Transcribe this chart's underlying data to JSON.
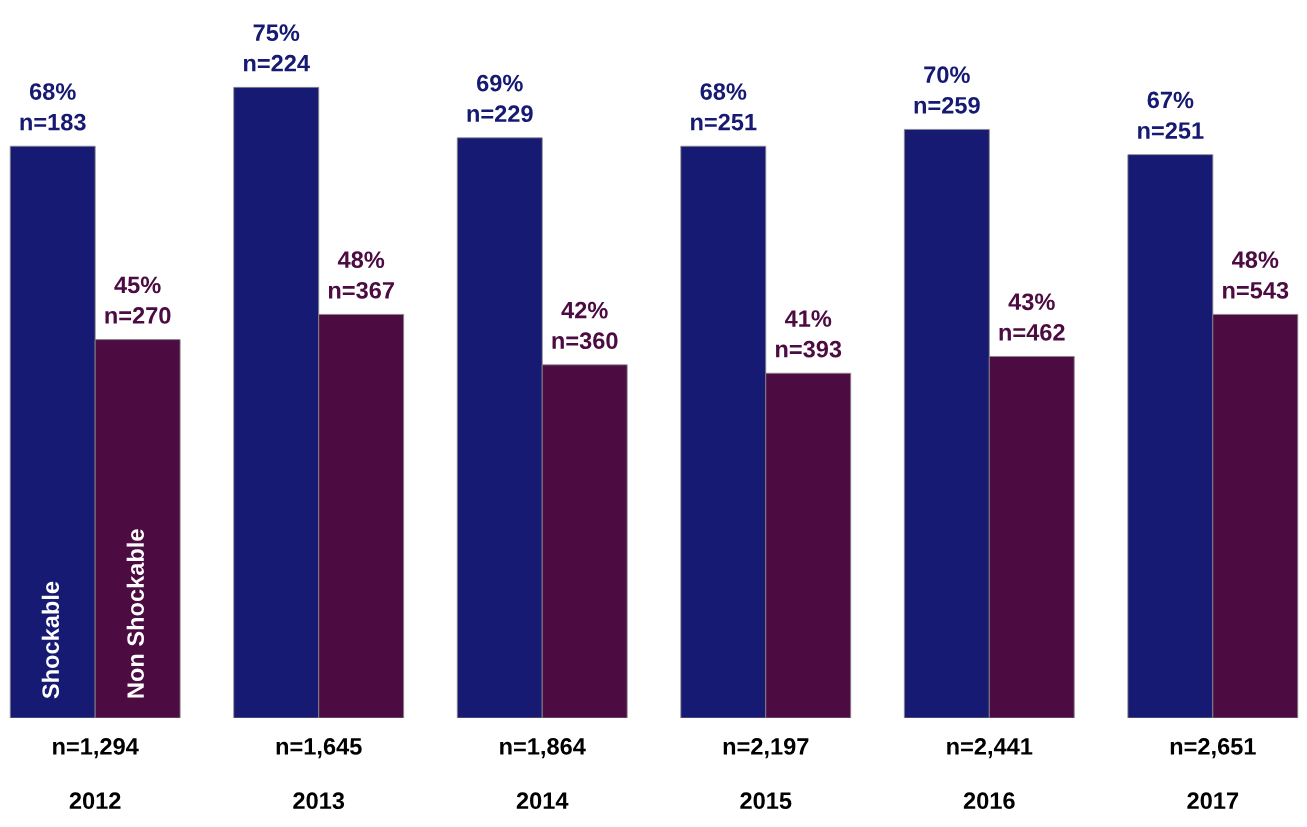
{
  "chart_data": {
    "type": "bar",
    "categories": [
      "n=1,294\n\n2012",
      "n=1,645\n\n2013",
      "n=1,864\n\n2014",
      "n=2,197\n\n2015",
      "n=2,441\n\n2016",
      "n=2,651\n\n2017"
    ],
    "series": [
      {
        "name": "Shockable",
        "color": "#161a72",
        "values": [
          68,
          75,
          69,
          68,
          70,
          67
        ],
        "value_labels": [
          "68%\nn=183",
          "75%\nn=224",
          "69%\nn=229",
          "68%\nn=251",
          "70%\nn=259",
          "67%\nn=251"
        ]
      },
      {
        "name": "Non Shockable",
        "color": "#4c0c42",
        "values": [
          45,
          48,
          42,
          41,
          43,
          48
        ],
        "value_labels": [
          "45%\nn=270",
          "48%\nn=367",
          "42%\nn=360",
          "41%\nn=393",
          "43%\nn=462",
          "48%\nn=543"
        ]
      }
    ],
    "grid": false,
    "legend": false
  }
}
